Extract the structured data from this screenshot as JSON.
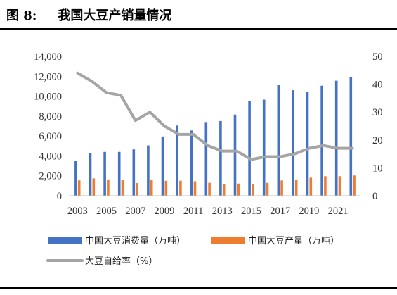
{
  "figure": {
    "label": "图 8:",
    "title": "我国大豆产销量情况"
  },
  "chart_data": {
    "type": "bar",
    "x": [
      2003,
      2004,
      2005,
      2006,
      2007,
      2008,
      2009,
      2010,
      2011,
      2012,
      2013,
      2014,
      2015,
      2016,
      2017,
      2018,
      2019,
      2020,
      2021,
      2022
    ],
    "x_tick_labels": [
      "2003",
      "2005",
      "2007",
      "2009",
      "2011",
      "2013",
      "2015",
      "2017",
      "2019",
      "2021"
    ],
    "y_left": {
      "ticks": [
        "0",
        "2,000",
        "4,000",
        "6,000",
        "8,000",
        "10,000",
        "12,000",
        "14,000"
      ],
      "ylim": [
        0,
        14000
      ]
    },
    "y_right": {
      "ticks": [
        "0",
        "10",
        "20",
        "30",
        "40",
        "50"
      ],
      "ylim": [
        0,
        50
      ]
    },
    "grid": false,
    "legend_position": "bottom",
    "series": [
      {
        "name": "中国大豆消费量（万吨）",
        "type": "bar",
        "axis": "left",
        "color": "#4472C4",
        "values": [
          3500,
          4250,
          4400,
          4400,
          4650,
          5050,
          5950,
          7050,
          6550,
          7400,
          7500,
          8150,
          9500,
          9650,
          11100,
          10600,
          10450,
          11050,
          11550,
          11900
        ]
      },
      {
        "name": "中国大豆产量（万吨）",
        "type": "bar",
        "axis": "left",
        "color": "#ED7D31",
        "values": [
          1540,
          1740,
          1640,
          1590,
          1270,
          1550,
          1500,
          1510,
          1450,
          1300,
          1200,
          1220,
          1180,
          1290,
          1530,
          1600,
          1810,
          1960,
          1960,
          2030
        ]
      },
      {
        "name": "大豆自给率（%）",
        "type": "line",
        "axis": "right",
        "color": "#A5A5A5",
        "values": [
          44,
          41,
          37,
          36,
          27,
          30,
          25,
          22,
          22,
          18,
          16,
          16,
          13,
          14,
          14,
          15,
          17,
          18,
          17,
          17
        ]
      }
    ]
  }
}
